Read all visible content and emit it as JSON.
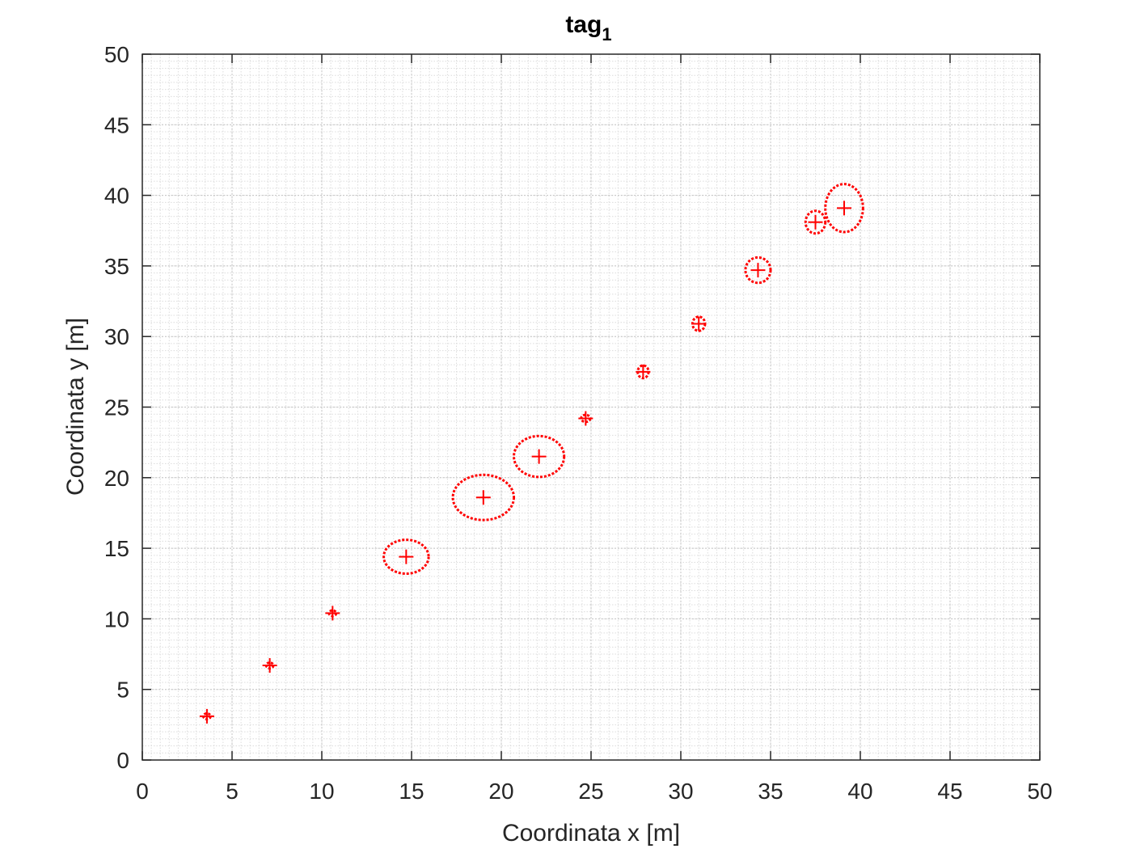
{
  "chart_data": {
    "type": "scatter",
    "title": "tag",
    "title_subscript": "1",
    "xlabel": "Coordinata x [m]",
    "ylabel": "Coordinata y [m]",
    "xlim": [
      0,
      50
    ],
    "ylim": [
      0,
      50
    ],
    "xticks": [
      0,
      5,
      10,
      15,
      20,
      25,
      30,
      35,
      40,
      45,
      50
    ],
    "yticks": [
      0,
      5,
      10,
      15,
      20,
      25,
      30,
      35,
      40,
      45,
      50
    ],
    "minor_grid_step": 0.5,
    "grid": true,
    "marker": "plus",
    "color": "#ff0000",
    "points": [
      {
        "x": 3.6,
        "y": 3.1,
        "rx": 0.2,
        "ry": 0.2
      },
      {
        "x": 7.1,
        "y": 6.7,
        "rx": 0.2,
        "ry": 0.2
      },
      {
        "x": 10.6,
        "y": 10.4,
        "rx": 0.2,
        "ry": 0.2
      },
      {
        "x": 14.7,
        "y": 14.4,
        "rx": 1.25,
        "ry": 1.2
      },
      {
        "x": 19.0,
        "y": 18.6,
        "rx": 1.7,
        "ry": 1.6
      },
      {
        "x": 22.1,
        "y": 21.5,
        "rx": 1.4,
        "ry": 1.45
      },
      {
        "x": 24.7,
        "y": 24.2,
        "rx": 0.25,
        "ry": 0.25
      },
      {
        "x": 27.9,
        "y": 27.5,
        "rx": 0.3,
        "ry": 0.45
      },
      {
        "x": 31.0,
        "y": 30.9,
        "rx": 0.35,
        "ry": 0.5
      },
      {
        "x": 34.3,
        "y": 34.7,
        "rx": 0.7,
        "ry": 0.9
      },
      {
        "x": 37.5,
        "y": 38.1,
        "rx": 0.55,
        "ry": 0.8
      },
      {
        "x": 39.1,
        "y": 39.1,
        "rx": 1.05,
        "ry": 1.7
      }
    ]
  }
}
